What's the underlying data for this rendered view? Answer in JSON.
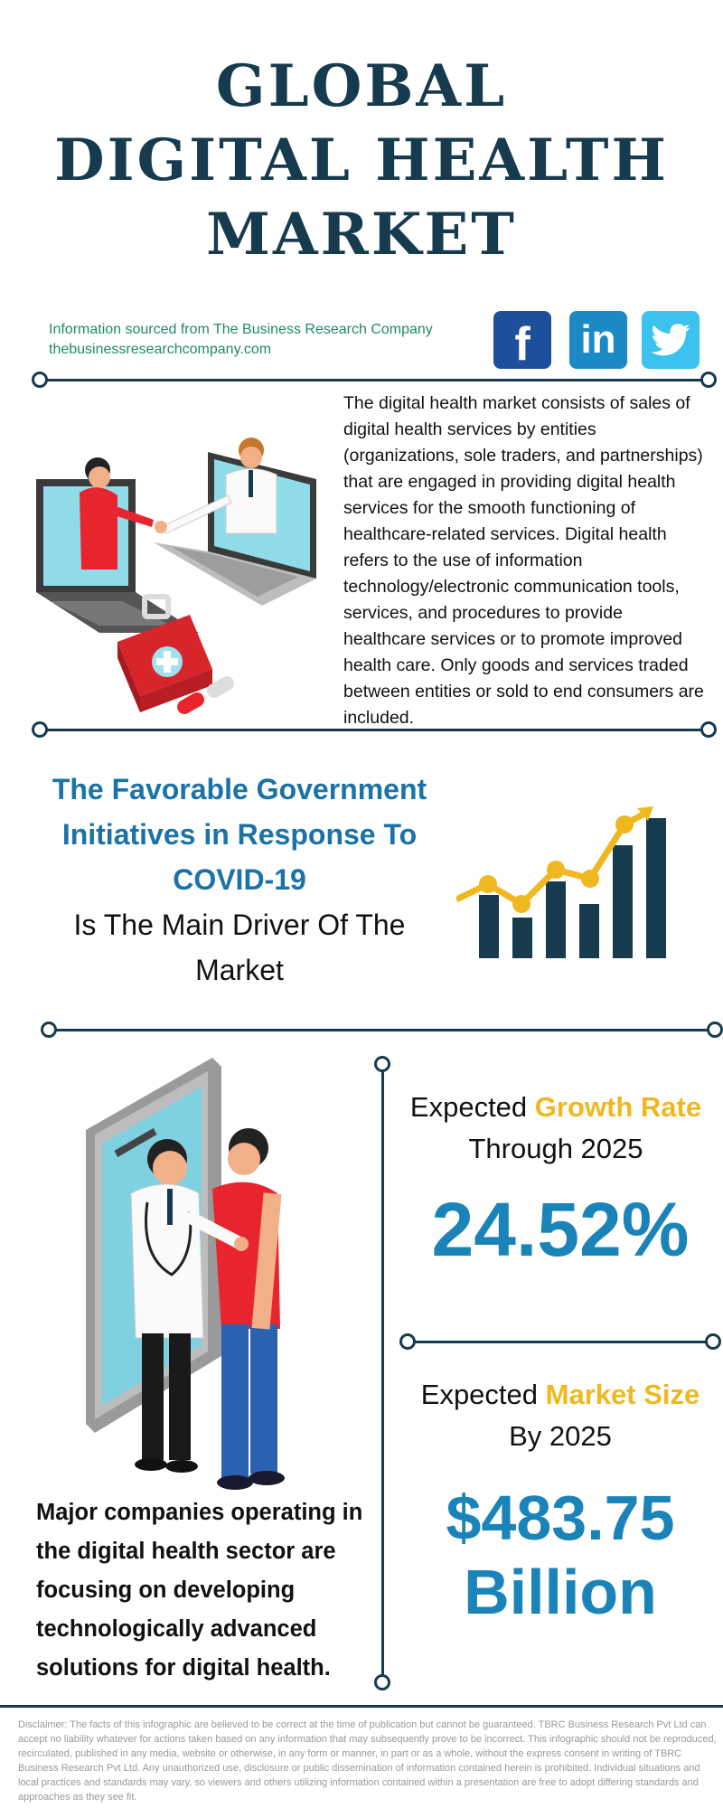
{
  "title": {
    "line1": "GLOBAL",
    "line2": "DIGITAL HEALTH",
    "line3": "MARKET"
  },
  "source": {
    "line1": "Information sourced from The Business Research Company",
    "line2": "thebusinessresearchcompany.com"
  },
  "social": [
    {
      "name": "facebook",
      "label": "f",
      "color": "#1d4f9c"
    },
    {
      "name": "linkedin",
      "label": "in",
      "color": "#1c89c7"
    },
    {
      "name": "twitter",
      "label": "",
      "color": "#3cc2ee"
    }
  ],
  "description": "The digital health market consists of sales of digital health services by entities (organizations, sole traders, and partnerships) that are engaged in providing digital health services for the smooth functioning of healthcare-related services. Digital health refers to the use of information  technology/electronic communication tools, services, and procedures to provide healthcare services or to promote improved health care. Only goods and services traded between entities or sold to end consumers are included.",
  "driver": {
    "highlight_line1": "The Favorable Government",
    "highlight_line2": "Initiatives in Response To",
    "highlight_line3": "COVID-19",
    "plain_line1": "Is The Main Driver Of The",
    "plain_line2": "Market"
  },
  "growth": {
    "prefix": "Expected",
    "highlight": "Growth Rate",
    "line2": "Through 2025",
    "value": "24.52%"
  },
  "market_size": {
    "prefix": "Expected",
    "highlight": "Market Size",
    "line2": "By 2025",
    "value_line1": "$483.75",
    "value_line2": "Billion"
  },
  "companies": "Major companies operating in the digital health sector are focusing on developing technologically advanced solutions for digital health.",
  "disclaimer": "Disclaimer: The facts of this infographic are believed to be correct at the time of publication but cannot be guaranteed. TBRC Business Research Pvt Ltd can accept no liability whatever for actions taken based on any information that may subsequently prove to be incorrect. This infographic should not be reproduced, recirculated, published in any media, website or otherwise, in any form or manner, in part or as a whole, without the express consent in writing of TBRC Business Research Pvt Ltd. Any unauthorized use, disclosure or public dissemination of information contained herein is prohibited. Individual situations and local practices and standards may vary, so viewers and others utilizing information contained within a presentation are free to adopt differing standards and approaches as they see fit.",
  "colors": {
    "navy": "#163a4e",
    "accent_blue": "#1a73a8",
    "value_blue": "#1a84b8",
    "gold": "#f0b81f",
    "source_green": "#1f8a6a"
  }
}
